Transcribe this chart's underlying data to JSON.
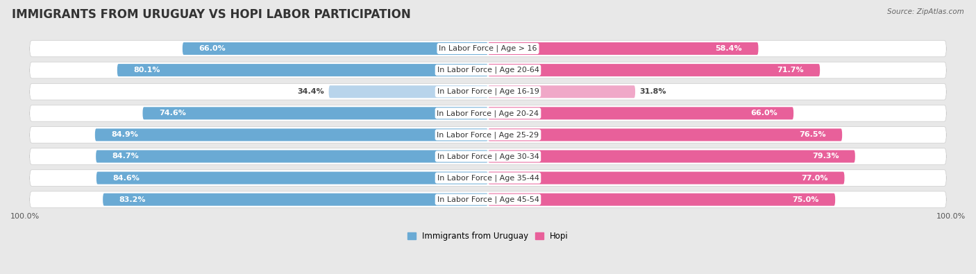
{
  "title": "IMMIGRANTS FROM URUGUAY VS HOPI LABOR PARTICIPATION",
  "source": "Source: ZipAtlas.com",
  "categories": [
    "In Labor Force | Age > 16",
    "In Labor Force | Age 20-64",
    "In Labor Force | Age 16-19",
    "In Labor Force | Age 20-24",
    "In Labor Force | Age 25-29",
    "In Labor Force | Age 30-34",
    "In Labor Force | Age 35-44",
    "In Labor Force | Age 45-54"
  ],
  "uruguay_values": [
    66.0,
    80.1,
    34.4,
    74.6,
    84.9,
    84.7,
    84.6,
    83.2
  ],
  "hopi_values": [
    58.4,
    71.7,
    31.8,
    66.0,
    76.5,
    79.3,
    77.0,
    75.0
  ],
  "uruguay_color_dark": "#6aaad4",
  "uruguay_color_light": "#b8d4eb",
  "hopi_color_dark": "#e8609a",
  "hopi_color_light": "#f0a8c8",
  "max_value": 100.0,
  "legend_uruguay": "Immigrants from Uruguay",
  "legend_hopi": "Hopi",
  "bar_height": 0.62,
  "background_color": "#e8e8e8",
  "row_bg_color": "#ffffff",
  "row_shadow_color": "#cccccc",
  "title_fontsize": 12,
  "label_fontsize": 8,
  "value_fontsize": 8,
  "tick_fontsize": 8
}
